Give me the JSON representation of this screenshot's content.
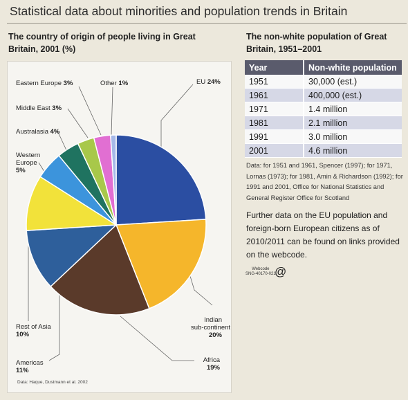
{
  "header": {
    "title": "Statistical data about minorities and population trends in Britain"
  },
  "left": {
    "subtitle": "The country of origin of people living in Great Britain, 2001 (%)",
    "source": "Data: Haque, Dustmann et al. 2002"
  },
  "chart_data": {
    "type": "pie",
    "title": "The country of origin of people living in Great Britain, 2001 (%)",
    "slices": [
      {
        "label": "EU",
        "value": 24,
        "color": "#2b4ea2"
      },
      {
        "label": "Indian sub-continent",
        "value": 20,
        "color": "#f5b62b"
      },
      {
        "label": "Africa",
        "value": 19,
        "color": "#5a3a2a"
      },
      {
        "label": "Americas",
        "value": 11,
        "color": "#2e5f9b"
      },
      {
        "label": "Rest of Asia",
        "value": 10,
        "color": "#f2e23a"
      },
      {
        "label": "Western Europe",
        "value": 5,
        "color": "#3c94dc"
      },
      {
        "label": "Australasia",
        "value": 4,
        "color": "#1f7360"
      },
      {
        "label": "Middle East",
        "value": 3,
        "color": "#a8c84a"
      },
      {
        "label": "Eastern Europe",
        "value": 3,
        "color": "#e16fd2"
      },
      {
        "label": "Other",
        "value": 1,
        "color": "#a6b9e8"
      }
    ]
  },
  "labels": {
    "eu": {
      "name": "EU",
      "pct": "24%"
    },
    "indian": {
      "name1": "Indian",
      "name2": "sub-continent",
      "pct": "20%"
    },
    "africa": {
      "name": "Africa",
      "pct": "19%"
    },
    "americas": {
      "name": "Americas",
      "pct": "11%"
    },
    "rest_asia": {
      "name": "Rest of Asia",
      "pct": "10%"
    },
    "western": {
      "name1": "Western",
      "name2": "Europe",
      "pct": "5%"
    },
    "australasia": {
      "name": "Australasia",
      "pct": "4%"
    },
    "middle_east": {
      "name": "Middle East",
      "pct": "3%"
    },
    "eastern": {
      "name": "Eastern Europe",
      "pct": "3%"
    },
    "other": {
      "name": "Other",
      "pct": "1%"
    }
  },
  "right": {
    "subtitle": "The non-white population of Great Britain, 1951–2001",
    "table": {
      "headers": [
        "Year",
        "Non-white population"
      ],
      "rows": [
        [
          "1951",
          "30,000 (est.)"
        ],
        [
          "1961",
          "400,000 (est.)"
        ],
        [
          "1971",
          "1.4 million"
        ],
        [
          "1981",
          "2.1 million"
        ],
        [
          "1991",
          "3.0 million"
        ],
        [
          "2001",
          "4.6 million"
        ]
      ]
    },
    "note": "Data: for 1951 and 1961, Spencer (1997); for 1971, Lornas (1973); for 1981, Amin & Richardson (1992); for 1991 and 2001, Office for National Statistics and General Register Office for Scotland",
    "further": "Further data on the EU population and foreign-born European citizens as of 2010/2011 can be found on links provided on the webcode.",
    "webcode_label": "Webcode",
    "webcode": "SNG-40170-021",
    "at_symbol": "@"
  }
}
